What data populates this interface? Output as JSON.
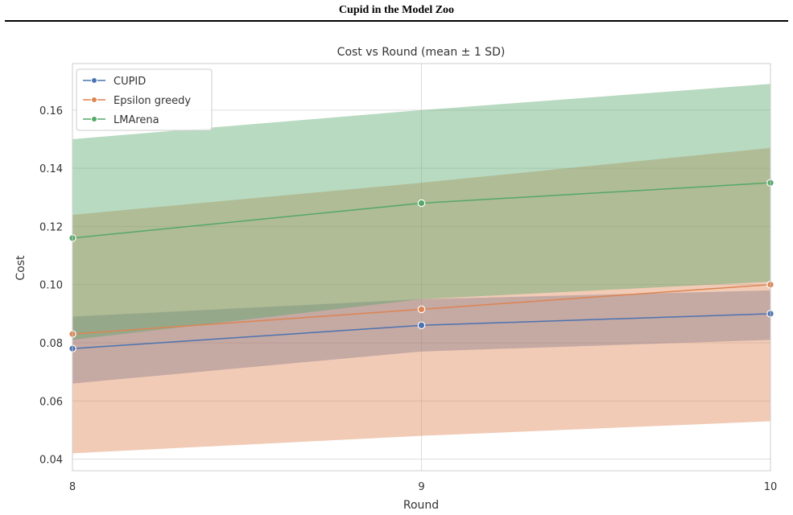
{
  "page": {
    "header_title": "Cupid in the Model Zoo"
  },
  "chart_data": {
    "type": "line",
    "title": "Cost vs Round (mean ± 1 SD)",
    "xlabel": "Round",
    "ylabel": "Cost",
    "x": [
      8,
      9,
      10
    ],
    "xlim": [
      8,
      10
    ],
    "ylim": [
      0.036,
      0.176
    ],
    "xticks": [
      "8",
      "9",
      "10"
    ],
    "yticks": [
      "0.04",
      "0.06",
      "0.08",
      "0.10",
      "0.12",
      "0.14",
      "0.16"
    ],
    "grid": true,
    "legend_position": "top-left",
    "series": [
      {
        "name": "CUPID",
        "color": "#4c72b0",
        "mean": [
          0.078,
          0.086,
          0.09
        ],
        "lower": [
          0.066,
          0.077,
          0.081
        ],
        "upper": [
          0.089,
          0.095,
          0.098
        ]
      },
      {
        "name": "Epsilon greedy",
        "color": "#dd8452",
        "mean": [
          0.083,
          0.0915,
          0.1
        ],
        "lower": [
          0.042,
          0.048,
          0.053
        ],
        "upper": [
          0.124,
          0.135,
          0.147
        ]
      },
      {
        "name": "LMArena",
        "color": "#55a868",
        "mean": [
          0.116,
          0.128,
          0.135
        ],
        "lower": [
          0.081,
          0.095,
          0.101
        ],
        "upper": [
          0.15,
          0.16,
          0.169
        ]
      }
    ]
  }
}
